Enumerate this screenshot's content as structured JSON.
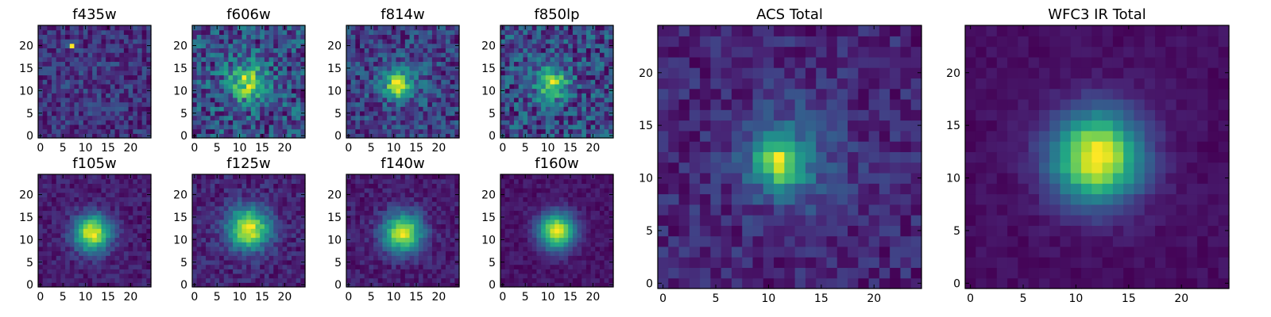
{
  "chart_data": [
    {
      "type": "heatmap",
      "title": "f435w",
      "xticks": [
        "0",
        "5",
        "10",
        "15",
        "20"
      ],
      "yticks": [
        "0",
        "5",
        "10",
        "15",
        "20"
      ],
      "grid": false,
      "legend": "none",
      "colormap": "viridis",
      "image_size": 25,
      "blobs": [
        {
          "x": 12,
          "y": 12,
          "amp": 0.04,
          "sigma": 5
        },
        {
          "x": 7,
          "y": 20,
          "amp": 0.75,
          "sigma": 0.5
        }
      ],
      "base": 0.42,
      "noise": 0.3
    },
    {
      "type": "heatmap",
      "title": "f606w",
      "xticks": [
        "0",
        "5",
        "10",
        "15",
        "20"
      ],
      "yticks": [
        "0",
        "5",
        "10",
        "15",
        "20"
      ],
      "grid": false,
      "legend": "none",
      "colormap": "viridis",
      "image_size": 25,
      "blobs": [
        {
          "x": 11.5,
          "y": 12,
          "amp": 0.4,
          "sigma": 3
        }
      ],
      "base": 0.32,
      "noise": 0.34
    },
    {
      "type": "heatmap",
      "title": "f814w",
      "xticks": [
        "0",
        "5",
        "10",
        "15",
        "20"
      ],
      "yticks": [
        "0",
        "5",
        "10",
        "15",
        "20"
      ],
      "grid": false,
      "legend": "none",
      "colormap": "viridis",
      "image_size": 25,
      "blobs": [
        {
          "x": 11,
          "y": 11,
          "amp": 0.55,
          "sigma": 1.8
        },
        {
          "x": 11.5,
          "y": 12,
          "amp": 0.12,
          "sigma": 4.5
        }
      ],
      "base": 0.26,
      "noise": 0.3
    },
    {
      "type": "heatmap",
      "title": "f850lp",
      "xticks": [
        "0",
        "5",
        "10",
        "15",
        "20"
      ],
      "yticks": [
        "0",
        "5",
        "10",
        "15",
        "20"
      ],
      "grid": false,
      "legend": "none",
      "colormap": "viridis",
      "image_size": 25,
      "blobs": [
        {
          "x": 11,
          "y": 11.5,
          "amp": 0.45,
          "sigma": 2.5
        }
      ],
      "base": 0.36,
      "noise": 0.34
    },
    {
      "type": "heatmap",
      "title": "f105w",
      "xticks": [
        "0",
        "5",
        "10",
        "15",
        "20"
      ],
      "yticks": [
        "0",
        "5",
        "10",
        "15",
        "20"
      ],
      "grid": false,
      "legend": "none",
      "colormap": "viridis",
      "image_size": 25,
      "blobs": [
        {
          "x": 11.5,
          "y": 11.5,
          "amp": 0.78,
          "sigma": 2.8
        }
      ],
      "base": 0.2,
      "noise": 0.14
    },
    {
      "type": "heatmap",
      "title": "f125w",
      "xticks": [
        "0",
        "5",
        "10",
        "15",
        "20"
      ],
      "yticks": [
        "0",
        "5",
        "10",
        "15",
        "20"
      ],
      "grid": false,
      "legend": "none",
      "colormap": "viridis",
      "image_size": 25,
      "blobs": [
        {
          "x": 12,
          "y": 12.5,
          "amp": 0.7,
          "sigma": 3.2
        }
      ],
      "base": 0.24,
      "noise": 0.16
    },
    {
      "type": "heatmap",
      "title": "f140w",
      "xticks": [
        "0",
        "5",
        "10",
        "15",
        "20"
      ],
      "yticks": [
        "0",
        "5",
        "10",
        "15",
        "20"
      ],
      "grid": false,
      "legend": "none",
      "colormap": "viridis",
      "image_size": 25,
      "blobs": [
        {
          "x": 12,
          "y": 11.5,
          "amp": 0.74,
          "sigma": 3
        }
      ],
      "base": 0.2,
      "noise": 0.14
    },
    {
      "type": "heatmap",
      "title": "f160w",
      "xticks": [
        "0",
        "5",
        "10",
        "15",
        "20"
      ],
      "yticks": [
        "0",
        "5",
        "10",
        "15",
        "20"
      ],
      "grid": false,
      "legend": "none",
      "colormap": "viridis",
      "image_size": 25,
      "blobs": [
        {
          "x": 12,
          "y": 12,
          "amp": 0.82,
          "sigma": 2.8
        }
      ],
      "base": 0.14,
      "noise": 0.1
    },
    {
      "type": "heatmap",
      "title": "ACS Total",
      "xticks": [
        "0",
        "5",
        "10",
        "15",
        "20"
      ],
      "yticks": [
        "0",
        "5",
        "10",
        "15",
        "20"
      ],
      "grid": false,
      "legend": "none",
      "colormap": "viridis",
      "image_size": 25,
      "blobs": [
        {
          "x": 11,
          "y": 11.5,
          "amp": 0.55,
          "sigma": 1.5
        },
        {
          "x": 12,
          "y": 12,
          "amp": 0.25,
          "sigma": 3.5
        }
      ],
      "base": 0.3,
      "noise": 0.2
    },
    {
      "type": "heatmap",
      "title": "WFC3 IR Total",
      "xticks": [
        "0",
        "5",
        "10",
        "15",
        "20"
      ],
      "yticks": [
        "0",
        "5",
        "10",
        "15",
        "20"
      ],
      "grid": false,
      "legend": "none",
      "colormap": "viridis",
      "image_size": 25,
      "blobs": [
        {
          "x": 12,
          "y": 12,
          "amp": 0.78,
          "sigma": 3
        }
      ],
      "base": 0.16,
      "noise": 0.06
    }
  ]
}
